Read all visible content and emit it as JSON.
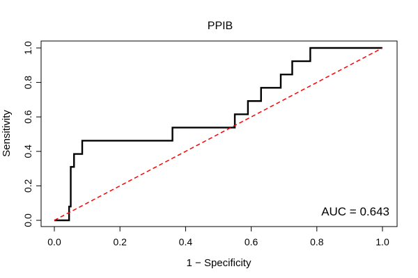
{
  "chart_data": {
    "type": "line",
    "title": "PPIB",
    "xlabel": "1 − Specificity",
    "ylabel": "Sensitivity",
    "xlim": [
      0,
      1
    ],
    "ylim": [
      0,
      1
    ],
    "x_ticks": [
      0.0,
      0.2,
      0.4,
      0.6,
      0.8,
      1.0
    ],
    "y_ticks": [
      0.0,
      0.2,
      0.4,
      0.6,
      0.8,
      1.0
    ],
    "x_tick_labels": [
      "0.0",
      "0.2",
      "0.4",
      "0.6",
      "0.8",
      "1.0"
    ],
    "y_tick_labels": [
      "0.0",
      "0.2",
      "0.4",
      "0.6",
      "0.8",
      "1.0"
    ],
    "annotation": "AUC = 0.643",
    "series": [
      {
        "name": "ROC curve",
        "color": "#000000",
        "x": [
          0.0,
          0.045,
          0.045,
          0.05,
          0.05,
          0.06,
          0.06,
          0.085,
          0.085,
          0.36,
          0.36,
          0.55,
          0.55,
          0.59,
          0.59,
          0.63,
          0.63,
          0.69,
          0.69,
          0.725,
          0.725,
          0.78,
          0.78,
          1.0
        ],
        "y": [
          0.0,
          0.0,
          0.08,
          0.08,
          0.31,
          0.31,
          0.385,
          0.385,
          0.462,
          0.462,
          0.538,
          0.538,
          0.615,
          0.615,
          0.692,
          0.692,
          0.769,
          0.769,
          0.846,
          0.846,
          0.923,
          0.923,
          1.0,
          1.0
        ]
      },
      {
        "name": "Chance line",
        "color": "#ff0000",
        "style": "dashed",
        "x": [
          0.0,
          1.0
        ],
        "y": [
          0.0,
          1.0
        ]
      }
    ]
  }
}
